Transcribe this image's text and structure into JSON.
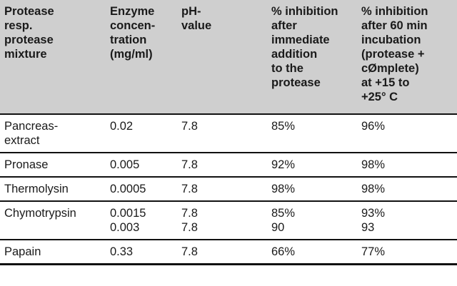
{
  "table": {
    "headers": [
      "Protease\nresp.\nprotease\nmixture",
      "Enzyme\nconcen-\ntration\n(mg/ml)",
      "pH-\nvalue",
      "% inhibition\nafter\nimmediate\naddition\nto the\nprotease",
      "% inhibition\nafter 60 min\nincubation\n(protease +\ncØmplete)\nat +15 to\n+25° C"
    ],
    "rows": [
      {
        "protease": "Pancreas-\nextract",
        "concentration": "0.02",
        "ph": "7.8",
        "immediate": "85%",
        "incubation": "96%"
      },
      {
        "protease": "Pronase",
        "concentration": "0.005",
        "ph": "7.8",
        "immediate": "92%",
        "incubation": "98%"
      },
      {
        "protease": "Thermolysin",
        "concentration": "0.0005",
        "ph": "7.8",
        "immediate": "98%",
        "incubation": "98%"
      },
      {
        "protease": "Chymotrypsin",
        "concentration": "0.0015\n0.003",
        "ph": "7.8\n7.8",
        "immediate": "85%\n90",
        "incubation": "93%\n93"
      },
      {
        "protease": "Papain",
        "concentration": "0.33",
        "ph": "7.8",
        "immediate": "66%",
        "incubation": "77%"
      }
    ]
  }
}
